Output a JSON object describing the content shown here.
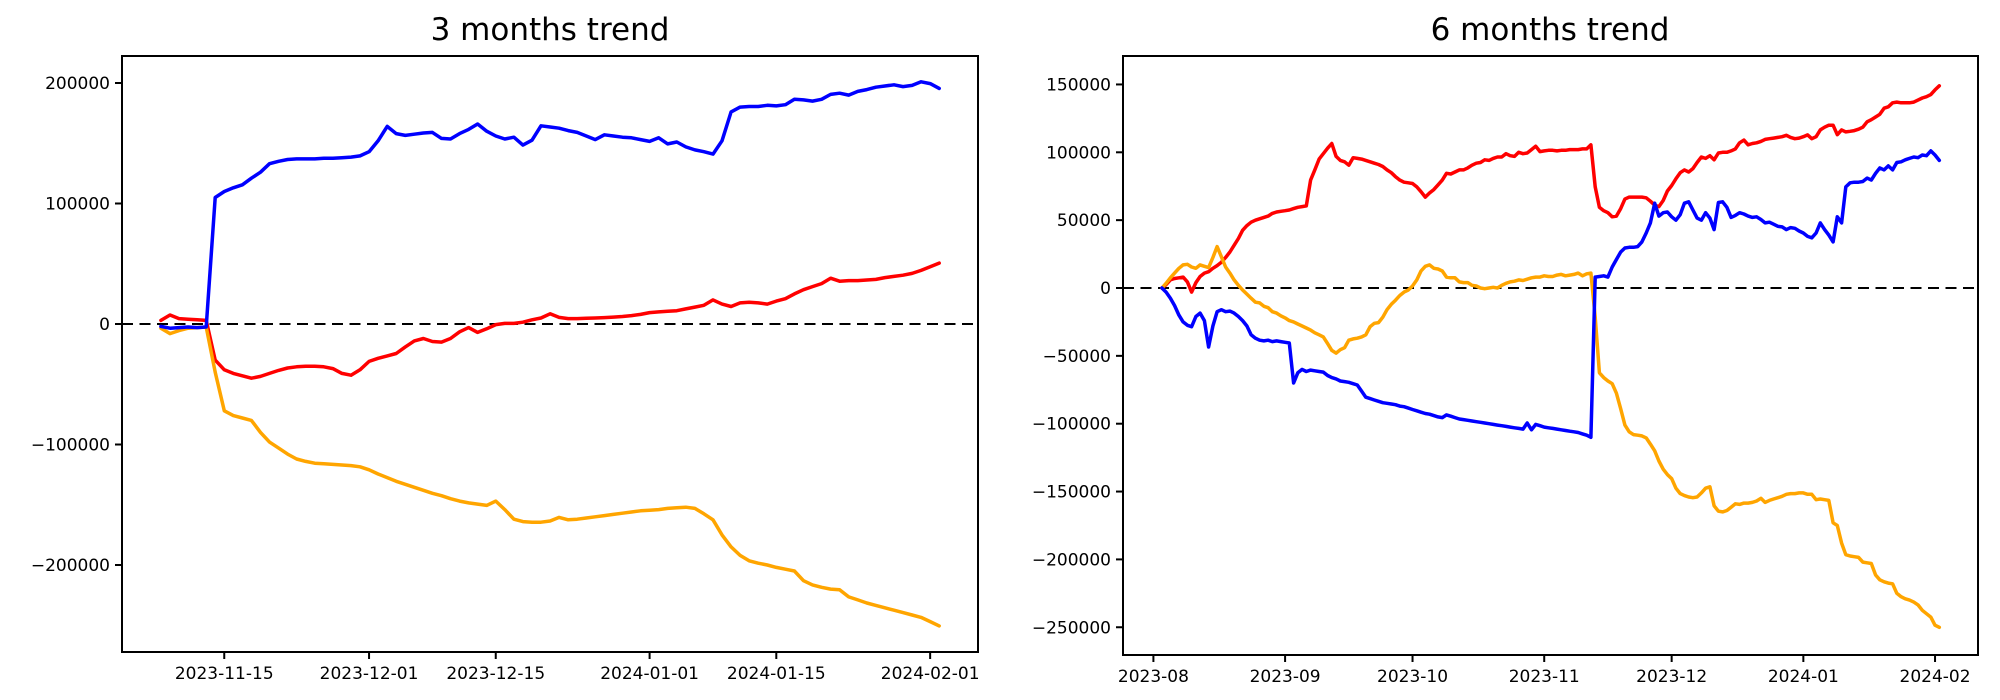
{
  "figure": {
    "background": "#ffffff",
    "axes_color": "#000000",
    "zero_line": {
      "style": "dashed",
      "color": "#000000"
    }
  },
  "chart_data": [
    {
      "type": "line",
      "title": "3 months trend",
      "x_start": "2023-11-08",
      "x_unit": "day",
      "grid": false,
      "legend": null,
      "zero_line": true,
      "ylim": [
        -272000,
        222000
      ],
      "y_ticks": [
        200000,
        100000,
        0,
        -100000,
        -200000
      ],
      "x_ticks": [
        {
          "offset": 7,
          "label": "2023-11-15"
        },
        {
          "offset": 23,
          "label": "2023-12-01"
        },
        {
          "offset": 37,
          "label": "2023-12-15"
        },
        {
          "offset": 54,
          "label": "2024-01-01"
        },
        {
          "offset": 68,
          "label": "2024-01-15"
        },
        {
          "offset": 85,
          "label": "2024-02-01"
        }
      ],
      "series": [
        {
          "name": "red",
          "color": "#ff0000",
          "values": [
            3000,
            7500,
            4500,
            4000,
            3500,
            3000,
            -30000,
            -38000,
            -41000,
            -43000,
            -45000,
            -43500,
            -41000,
            -38500,
            -36500,
            -35500,
            -35000,
            -35000,
            -35500,
            -37000,
            -41000,
            -42500,
            -38000,
            -31000,
            -28500,
            -26500,
            -24500,
            -19000,
            -14000,
            -12000,
            -14500,
            -15000,
            -12000,
            -6500,
            -3000,
            -7000,
            -4000,
            -500,
            500,
            500,
            1500,
            3500,
            5000,
            8500,
            5500,
            4500,
            4500,
            4800,
            5000,
            5300,
            5700,
            6200,
            7000,
            8000,
            9500,
            10000,
            10500,
            11000,
            12500,
            14000,
            15500,
            20000,
            16500,
            14500,
            17500,
            18000,
            17500,
            16500,
            19000,
            21000,
            25000,
            28500,
            31000,
            33500,
            38000,
            35500,
            36000,
            36000,
            36500,
            37000,
            38500,
            39500,
            40500,
            42000,
            44500,
            47500,
            50500
          ]
        },
        {
          "name": "orange",
          "color": "#ffa500",
          "values": [
            -3500,
            -8000,
            -5500,
            -3500,
            -3000,
            -2500,
            -40000,
            -72000,
            -76000,
            -78000,
            -80000,
            -90000,
            -98000,
            -103000,
            -108000,
            -112000,
            -114000,
            -115500,
            -116000,
            -116500,
            -117000,
            -117500,
            -118500,
            -121000,
            -124500,
            -127500,
            -130500,
            -133000,
            -135500,
            -138000,
            -140500,
            -142500,
            -145000,
            -147000,
            -148500,
            -149500,
            -150500,
            -147000,
            -154000,
            -162000,
            -164000,
            -164500,
            -164500,
            -163500,
            -160500,
            -162500,
            -162000,
            -161000,
            -160000,
            -159000,
            -158000,
            -157000,
            -156000,
            -155000,
            -154500,
            -154000,
            -153000,
            -152500,
            -152000,
            -153000,
            -157500,
            -162500,
            -175000,
            -185000,
            -192000,
            -196500,
            -198500,
            -200000,
            -202000,
            -203500,
            -205000,
            -213000,
            -216500,
            -218500,
            -220000,
            -220500,
            -226500,
            -229000,
            -231500,
            -233500,
            -235500,
            -237500,
            -239500,
            -241500,
            -243500,
            -247000,
            -250500
          ]
        },
        {
          "name": "blue",
          "color": "#0000ff",
          "values": [
            -2000,
            -3500,
            -3000,
            -2500,
            -3000,
            -2500,
            105000,
            110000,
            113000,
            115500,
            121000,
            126000,
            133000,
            135000,
            136500,
            137000,
            137000,
            137000,
            137500,
            137500,
            138000,
            138500,
            139500,
            143000,
            152000,
            164000,
            158000,
            156500,
            157500,
            158500,
            159000,
            154000,
            153500,
            158000,
            161500,
            166000,
            160000,
            156000,
            153500,
            155000,
            148500,
            152500,
            164500,
            163500,
            162500,
            160500,
            159000,
            156000,
            153000,
            157000,
            156000,
            155000,
            154500,
            153000,
            151500,
            154500,
            149500,
            151000,
            147000,
            144500,
            143000,
            141000,
            152000,
            176000,
            180000,
            180500,
            180500,
            181500,
            181000,
            182000,
            186500,
            186000,
            185000,
            186500,
            190500,
            191500,
            190000,
            193000,
            194500,
            196500,
            197500,
            198500,
            197000,
            198000,
            201000,
            199500,
            195500
          ]
        }
      ]
    },
    {
      "type": "line",
      "title": "6 months trend",
      "x_start": "2023-08-03",
      "x_unit": "day",
      "grid": false,
      "legend": null,
      "zero_line": true,
      "ylim": [
        -270000,
        171000
      ],
      "y_ticks": [
        150000,
        100000,
        50000,
        0,
        -50000,
        -100000,
        -150000,
        -200000,
        -250000
      ],
      "x_ticks": [
        {
          "offset": -2,
          "label": "2023-08"
        },
        {
          "offset": 29,
          "label": "2023-09"
        },
        {
          "offset": 59,
          "label": "2023-10"
        },
        {
          "offset": 90,
          "label": "2023-11"
        },
        {
          "offset": 120,
          "label": "2023-12"
        },
        {
          "offset": 151,
          "label": "2024-01"
        },
        {
          "offset": 182,
          "label": "2024-02"
        }
      ],
      "series": [
        {
          "name": "red",
          "color": "#ff0000",
          "values": [
            0,
            2500,
            6000,
            7000,
            7500,
            8000,
            4500,
            -3000,
            4000,
            8500,
            11000,
            12000,
            14500,
            16500,
            19000,
            22500,
            26500,
            31500,
            36500,
            42500,
            46000,
            48500,
            50000,
            51000,
            52000,
            53000,
            55000,
            56000,
            56500,
            57000,
            57500,
            58500,
            59500,
            60000,
            60500,
            79500,
            87000,
            95000,
            99000,
            103000,
            106500,
            97000,
            94000,
            93000,
            90500,
            96000,
            95500,
            95000,
            94000,
            93000,
            92000,
            91000,
            89500,
            87000,
            85000,
            82000,
            79500,
            78000,
            77500,
            77000,
            74500,
            71000,
            67000,
            70000,
            72500,
            76000,
            79500,
            84500,
            84000,
            85500,
            87000,
            87000,
            88500,
            90500,
            92000,
            92500,
            94500,
            94000,
            95500,
            96500,
            96500,
            99000,
            97500,
            97000,
            100000,
            99000,
            99500,
            102000,
            104500,
            100500,
            101000,
            101500,
            101500,
            101000,
            101500,
            101500,
            102000,
            102000,
            102000,
            102500,
            102500,
            105500,
            74500,
            59500,
            57000,
            55500,
            52500,
            53000,
            58500,
            65500,
            67000,
            67000,
            67000,
            67000,
            66500,
            64000,
            61000,
            60000,
            64500,
            71500,
            75500,
            80500,
            85000,
            87000,
            85500,
            88000,
            92500,
            96500,
            95500,
            97500,
            94500,
            99500,
            100000,
            100000,
            101000,
            102500,
            107000,
            109000,
            105500,
            106500,
            107000,
            108000,
            109500,
            110000,
            110500,
            111000,
            111500,
            112500,
            111000,
            110000,
            110500,
            111500,
            112800,
            110000,
            111500,
            116500,
            118500,
            120000,
            120000,
            113000,
            116500,
            115000,
            115500,
            116000,
            117000,
            118500,
            122500,
            124000,
            126000,
            128000,
            132500,
            133500,
            136500,
            137000,
            136500,
            136500,
            136500,
            137000,
            138500,
            140000,
            141000,
            142500,
            146000,
            149000
          ]
        },
        {
          "name": "orange",
          "color": "#ffa500",
          "values": [
            0,
            3500,
            7500,
            11000,
            14500,
            17000,
            17500,
            15500,
            14500,
            17000,
            16000,
            15000,
            22500,
            30500,
            23000,
            15500,
            11000,
            6000,
            2000,
            -1500,
            -4500,
            -7500,
            -10500,
            -11000,
            -13500,
            -14500,
            -17500,
            -18500,
            -20500,
            -22000,
            -24000,
            -25000,
            -26500,
            -28000,
            -29500,
            -31000,
            -33000,
            -34500,
            -36000,
            -41000,
            -46000,
            -48000,
            -45500,
            -44000,
            -38500,
            -37500,
            -37000,
            -36000,
            -34500,
            -28500,
            -26000,
            -25500,
            -21500,
            -16000,
            -12000,
            -9000,
            -5500,
            -3000,
            -1500,
            1500,
            6000,
            12500,
            16000,
            17000,
            14500,
            14000,
            12500,
            8000,
            7500,
            7500,
            4500,
            4000,
            4000,
            2000,
            1500,
            0,
            -500,
            0,
            500,
            0,
            2000,
            3500,
            4500,
            5000,
            6000,
            5500,
            6500,
            7500,
            8000,
            8000,
            9000,
            8500,
            8500,
            9500,
            10000,
            9000,
            9500,
            10000,
            11000,
            9000,
            10500,
            11000,
            -21500,
            -62500,
            -66000,
            -68500,
            -70500,
            -77500,
            -89000,
            -101000,
            -106000,
            -108000,
            -108500,
            -109000,
            -110500,
            -115000,
            -120000,
            -127500,
            -133500,
            -137500,
            -140500,
            -147500,
            -151500,
            -153000,
            -154000,
            -154500,
            -154000,
            -151000,
            -147500,
            -146500,
            -160500,
            -164500,
            -165000,
            -164000,
            -161500,
            -159000,
            -159500,
            -158500,
            -158500,
            -158000,
            -157000,
            -155000,
            -158000,
            -156500,
            -155500,
            -154500,
            -153500,
            -152000,
            -151500,
            -151500,
            -151000,
            -151000,
            -152000,
            -152000,
            -156000,
            -155500,
            -156000,
            -156500,
            -173000,
            -175000,
            -188000,
            -196500,
            -197500,
            -198000,
            -198500,
            -202000,
            -202500,
            -203000,
            -211500,
            -215000,
            -216500,
            -217500,
            -218000,
            -225000,
            -227500,
            -229000,
            -230000,
            -231500,
            -233500,
            -237500,
            -240000,
            -242500,
            -248500,
            -250000
          ]
        },
        {
          "name": "blue",
          "color": "#0000ff",
          "values": [
            0,
            -3000,
            -7500,
            -13000,
            -20000,
            -25000,
            -27500,
            -28500,
            -21000,
            -18500,
            -24000,
            -43500,
            -28000,
            -17500,
            -16000,
            -17500,
            -17000,
            -18500,
            -21000,
            -24000,
            -28000,
            -34500,
            -37000,
            -38500,
            -39000,
            -38500,
            -39500,
            -39000,
            -39500,
            -40000,
            -40500,
            -70000,
            -62500,
            -60000,
            -61500,
            -60500,
            -61000,
            -61500,
            -62000,
            -64500,
            -66000,
            -67000,
            -68500,
            -69000,
            -69500,
            -70500,
            -71500,
            -76000,
            -80500,
            -81500,
            -82500,
            -83500,
            -84500,
            -85000,
            -85500,
            -86000,
            -87000,
            -87500,
            -88500,
            -89500,
            -90500,
            -91500,
            -92500,
            -93000,
            -94000,
            -95000,
            -95500,
            -93500,
            -94500,
            -95500,
            -96500,
            -97000,
            -97500,
            -98000,
            -98500,
            -99000,
            -99500,
            -100000,
            -100500,
            -101000,
            -101500,
            -102000,
            -102500,
            -103000,
            -103500,
            -104000,
            -99500,
            -104500,
            -100500,
            -101500,
            -102500,
            -103000,
            -103500,
            -104000,
            -104500,
            -105000,
            -105500,
            -106000,
            -106500,
            -107500,
            -108500,
            -110000,
            8000,
            8500,
            9000,
            8000,
            15500,
            21000,
            26500,
            29500,
            30000,
            30000,
            30500,
            34000,
            40500,
            48000,
            62500,
            53000,
            55500,
            56000,
            52500,
            50000,
            54000,
            62500,
            63500,
            57500,
            51500,
            50000,
            55500,
            51500,
            43000,
            63000,
            63500,
            59500,
            52000,
            53500,
            55500,
            54500,
            53000,
            52000,
            52500,
            50500,
            48000,
            48500,
            47000,
            45500,
            45000,
            43000,
            44500,
            44000,
            42000,
            40500,
            38000,
            37000,
            40500,
            48000,
            43000,
            39000,
            34000,
            52500,
            48000,
            74500,
            77500,
            78000,
            78000,
            78500,
            81000,
            79500,
            84500,
            88500,
            87000,
            90000,
            87000,
            92500,
            93000,
            94500,
            95500,
            96500,
            96000,
            98000,
            97500,
            101000,
            98000,
            94000
          ]
        }
      ]
    }
  ]
}
